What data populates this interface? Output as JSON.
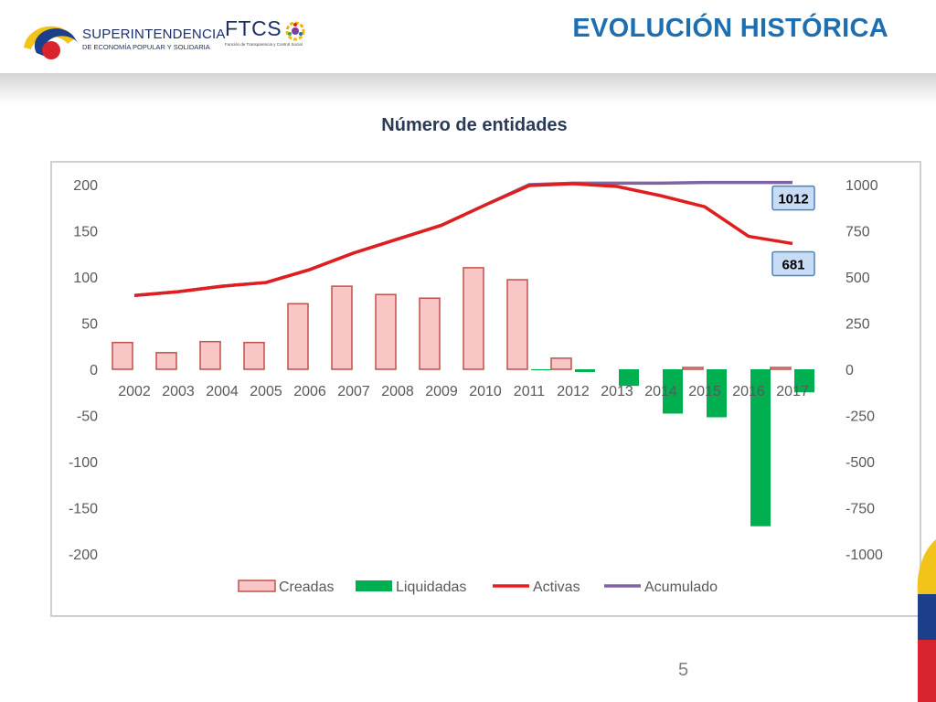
{
  "header": {
    "logo_superintendencia_line1": "SUPERINTENDENCIA",
    "logo_superintendencia_line2": "DE ECONOMÍA POPULAR Y SOLIDARIA",
    "logo_ftcs_main": "FTCS",
    "logo_ftcs_sub": "Función de Transparencia y Control Social",
    "page_title": "EVOLUCIÓN HISTÓRICA"
  },
  "footer": {
    "page_number": "5"
  },
  "colors": {
    "title_blue": "#1f6fb0",
    "creadas_fill": "#f9c6c6",
    "creadas_border": "#c0504d",
    "liquidadas": "#00b050",
    "activas": "#e01e1e",
    "acumulado": "#8064a2",
    "callout_fill": "#c9dcf5",
    "callout_border": "#4f81bd"
  },
  "chart_data": {
    "type": "bar",
    "title": "Número de entidades",
    "categories": [
      "2002",
      "2003",
      "2004",
      "2005",
      "2006",
      "2007",
      "2008",
      "2009",
      "2010",
      "2011",
      "2012",
      "2013",
      "2014",
      "2015",
      "2016",
      "2017"
    ],
    "y_left": {
      "min": -200,
      "max": 200,
      "ticks": [
        200,
        150,
        100,
        50,
        0,
        -50,
        -100,
        -150,
        -200
      ]
    },
    "y_right": {
      "min": -1000,
      "max": 1000,
      "ticks": [
        1000,
        750,
        500,
        250,
        0,
        -250,
        -500,
        -750,
        -1000
      ]
    },
    "grid": false,
    "legend_position": "bottom",
    "series": [
      {
        "name": "Creadas",
        "type": "bar",
        "axis": "left",
        "values": [
          29,
          18,
          30,
          29,
          71,
          90,
          81,
          77,
          110,
          97,
          12,
          0,
          0,
          2,
          0,
          2
        ]
      },
      {
        "name": "Liquidadas",
        "type": "bar",
        "axis": "left",
        "values": [
          0,
          0,
          0,
          0,
          0,
          0,
          0,
          0,
          0,
          -1,
          -3,
          -18,
          -48,
          -52,
          -170,
          -25
        ]
      },
      {
        "name": "Activas",
        "type": "line",
        "axis": "right",
        "values": [
          400,
          420,
          450,
          470,
          540,
          630,
          705,
          780,
          890,
          995,
          1005,
          990,
          940,
          880,
          720,
          681
        ]
      },
      {
        "name": "Acumulado",
        "type": "line",
        "axis": "right",
        "values": [
          400,
          420,
          450,
          470,
          540,
          630,
          705,
          780,
          890,
          1000,
          1008,
          1008,
          1008,
          1012,
          1012,
          1012
        ]
      }
    ],
    "callouts": [
      {
        "series": "Acumulado",
        "label": "1012"
      },
      {
        "series": "Activas",
        "label": "681"
      }
    ]
  }
}
